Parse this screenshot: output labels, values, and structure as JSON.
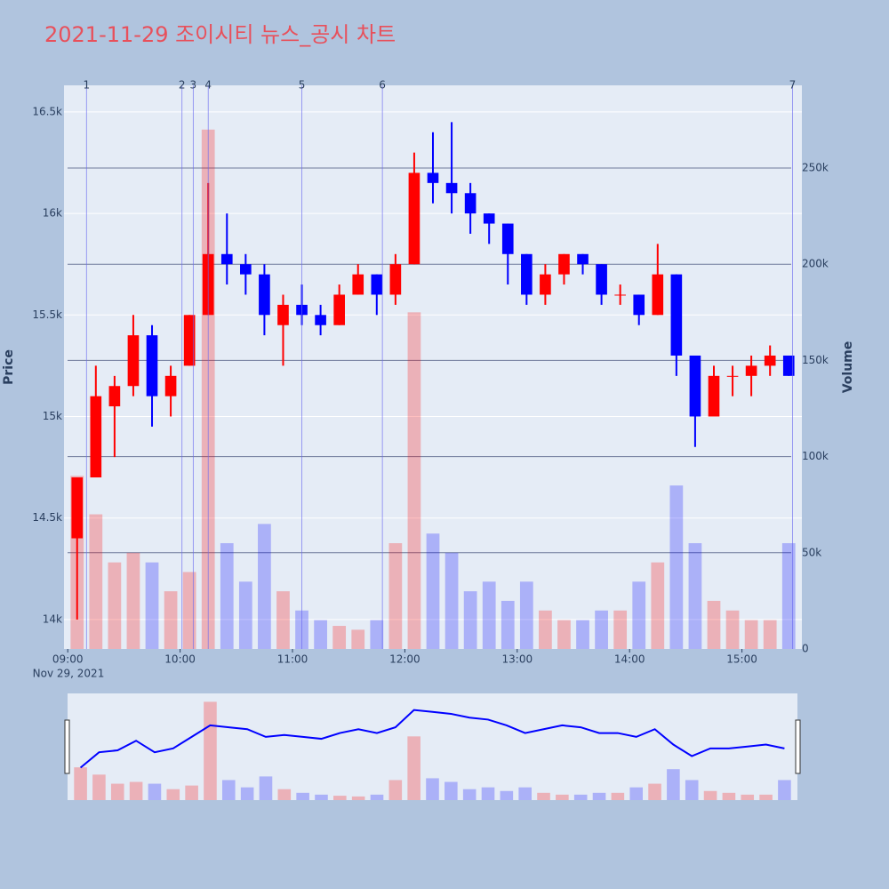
{
  "chart_data": {
    "type": "candlestick",
    "title": "2021-11-29 조이시티 뉴스_공시 차트",
    "y_label": "Price",
    "y2_label": "Volume",
    "date_label": "Nov 29, 2021",
    "up_color": "#ff0000",
    "down_color": "#0000ff",
    "x": [
      "09:00",
      "09:10",
      "09:20",
      "09:30",
      "09:40",
      "09:50",
      "10:00",
      "10:10",
      "10:20",
      "10:30",
      "10:40",
      "10:50",
      "11:00",
      "11:10",
      "11:20",
      "11:30",
      "11:40",
      "11:50",
      "12:00",
      "12:10",
      "12:20",
      "12:30",
      "12:40",
      "12:50",
      "13:00",
      "13:10",
      "13:20",
      "13:30",
      "13:40",
      "13:50",
      "14:00",
      "14:10",
      "14:20",
      "14:30",
      "14:40",
      "14:50",
      "15:00",
      "15:10",
      "15:20"
    ],
    "open": [
      14400,
      14700,
      15050,
      15150,
      15400,
      15100,
      15250,
      15500,
      15800,
      15750,
      15700,
      15450,
      15550,
      15500,
      15450,
      15600,
      15700,
      15600,
      15750,
      16200,
      16150,
      16100,
      16000,
      15950,
      15800,
      15600,
      15700,
      15800,
      15750,
      15600,
      15600,
      15500,
      15700,
      15300,
      15000,
      15200,
      15200,
      15250,
      15300
    ],
    "high": [
      14700,
      15250,
      15200,
      15500,
      15450,
      15250,
      15500,
      16150,
      16000,
      15800,
      15750,
      15600,
      15650,
      15550,
      15650,
      15750,
      15700,
      15800,
      16300,
      16400,
      16450,
      16150,
      16000,
      15950,
      15800,
      15750,
      15800,
      15800,
      15750,
      15650,
      15600,
      15850,
      15700,
      15300,
      15250,
      15250,
      15300,
      15350,
      15300
    ],
    "low": [
      14000,
      14700,
      14800,
      15100,
      14950,
      15000,
      15250,
      15500,
      15650,
      15600,
      15400,
      15250,
      15450,
      15400,
      15450,
      15600,
      15500,
      15550,
      15750,
      16050,
      16000,
      15900,
      15850,
      15650,
      15550,
      15550,
      15650,
      15700,
      15550,
      15550,
      15450,
      15500,
      15200,
      14850,
      15000,
      15100,
      15100,
      15200,
      15200
    ],
    "close": [
      14700,
      15100,
      15150,
      15400,
      15100,
      15200,
      15500,
      15800,
      15750,
      15700,
      15500,
      15550,
      15500,
      15450,
      15600,
      15700,
      15600,
      15750,
      16200,
      16150,
      16100,
      16000,
      15950,
      15800,
      15600,
      15700,
      15800,
      15750,
      15600,
      15600,
      15500,
      15700,
      15300,
      15000,
      15200,
      15200,
      15250,
      15300,
      15200
    ],
    "volume": [
      90000,
      70000,
      45000,
      50000,
      45000,
      30000,
      40000,
      270000,
      55000,
      35000,
      65000,
      30000,
      20000,
      15000,
      12000,
      10000,
      15000,
      55000,
      175000,
      60000,
      50000,
      30000,
      35000,
      25000,
      35000,
      20000,
      15000,
      15000,
      20000,
      20000,
      35000,
      45000,
      85000,
      55000,
      25000,
      20000,
      15000,
      15000,
      55000
    ],
    "xlim": [
      "08:58",
      "15:32"
    ],
    "xticks": [
      "09:00",
      "10:00",
      "11:00",
      "12:00",
      "13:00",
      "14:00",
      "15:00"
    ],
    "ylim": [
      13855,
      16631
    ],
    "yticks": [
      {
        "value": 14000,
        "label": "14k"
      },
      {
        "value": 14500,
        "label": "14.5k"
      },
      {
        "value": 15000,
        "label": "15k"
      },
      {
        "value": 15500,
        "label": "15.5k"
      },
      {
        "value": 16000,
        "label": "16k"
      },
      {
        "value": 16500,
        "label": "16.5k"
      }
    ],
    "y2lim": [
      0,
      293000
    ],
    "y2ticks": [
      0,
      {
        "value": 50000,
        "label": "50k"
      },
      {
        "value": 100000,
        "label": "100k"
      },
      {
        "value": 150000,
        "label": "150k"
      },
      {
        "value": 200000,
        "label": "200k"
      },
      {
        "value": 250000,
        "label": "250k"
      }
    ],
    "events": [
      {
        "label": "1",
        "x": "09:10"
      },
      {
        "label": "2",
        "x": "10:01"
      },
      {
        "label": "3",
        "x": "10:07"
      },
      {
        "label": "4",
        "x": "10:15"
      },
      {
        "label": "5",
        "x": "11:05"
      },
      {
        "label": "6",
        "x": "11:48"
      },
      {
        "label": "7",
        "x": "15:27"
      }
    ]
  }
}
